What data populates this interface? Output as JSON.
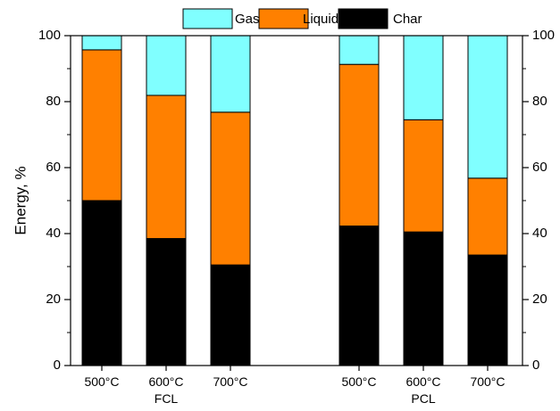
{
  "chart_data": {
    "type": "bar",
    "stacked": true,
    "categories": [
      "500°C",
      "600°C",
      "700°C",
      "500°C",
      "600°C",
      "700°C"
    ],
    "groups": [
      {
        "label": "FCL",
        "categories": [
          "500°C",
          "600°C",
          "700°C"
        ]
      },
      {
        "label": "PCL",
        "categories": [
          "500°C",
          "600°C",
          "700°C"
        ]
      }
    ],
    "series": [
      {
        "name": "Char",
        "color": "#000000",
        "values": [
          50.0,
          38.5,
          30.5,
          42.3,
          40.5,
          33.5
        ]
      },
      {
        "name": "Liquid",
        "color": "#ff8000",
        "values": [
          45.7,
          43.4,
          46.3,
          49.0,
          34.0,
          23.3
        ]
      },
      {
        "name": "Gas",
        "color": "#80ffff",
        "values": [
          4.3,
          18.1,
          23.2,
          8.7,
          25.5,
          43.2
        ]
      }
    ],
    "legend": {
      "position": "top",
      "order": [
        "Gas",
        "Liquid",
        "Char"
      ]
    },
    "ylabel": "Energy, %",
    "xlabel": "",
    "ylim": [
      0,
      100
    ],
    "yticks": [
      0,
      20,
      40,
      60,
      80,
      100
    ],
    "right_axis_ticks": true,
    "grid": false
  }
}
